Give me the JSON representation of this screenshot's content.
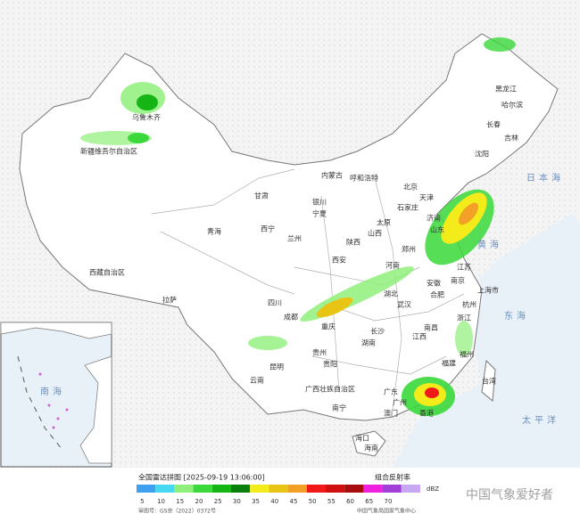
{
  "header": {
    "title": "全国雷达拼图 [2025-09-19 13:06:00]",
    "product": "组合反射率"
  },
  "legend": {
    "unit": "dBZ",
    "ticks": [
      5,
      10,
      15,
      20,
      25,
      30,
      35,
      40,
      45,
      50,
      55,
      60,
      65,
      70
    ],
    "colors": [
      "#3fa0f0",
      "#45d8f0",
      "#8ef07a",
      "#3ad83a",
      "#15b515",
      "#0b7f0b",
      "#f3ec1a",
      "#e8c415",
      "#f3a026",
      "#f01818",
      "#d01010",
      "#a80c0c",
      "#f020e0",
      "#a040d8",
      "#c8a8f0"
    ]
  },
  "footer": {
    "approval": "审图号：GS京（2022）0372号",
    "source": "中国气象局国家气象中心",
    "watermark": "中国气象爱好者"
  },
  "map": {
    "labels": [
      "黑龙江",
      "哈尔滨",
      "吉林",
      "长春",
      "沈阳",
      "内蒙古",
      "新疆维吾尔自治区",
      "乌鲁木齐",
      "西藏自治区",
      "拉萨",
      "青海",
      "西宁",
      "甘肃",
      "兰州",
      "宁夏",
      "银川",
      "呼和浩特",
      "北京",
      "天津",
      "石家庄",
      "太原",
      "山西",
      "陕西",
      "西安",
      "河南",
      "郑州",
      "山东",
      "济南",
      "江苏",
      "南京",
      "安徽",
      "合肥",
      "上海市",
      "湖北",
      "武汉",
      "四川",
      "成都",
      "重庆",
      "湖南",
      "长沙",
      "江西",
      "南昌",
      "浙江",
      "杭州",
      "福建",
      "福州",
      "台湾",
      "贵州",
      "贵阳",
      "云南",
      "昆明",
      "广西壮族自治区",
      "南宁",
      "广东",
      "广州",
      "香港",
      "澳门",
      "海南",
      "海口",
      "日本海",
      "黄海",
      "东海",
      "太平洋",
      "南海"
    ]
  }
}
